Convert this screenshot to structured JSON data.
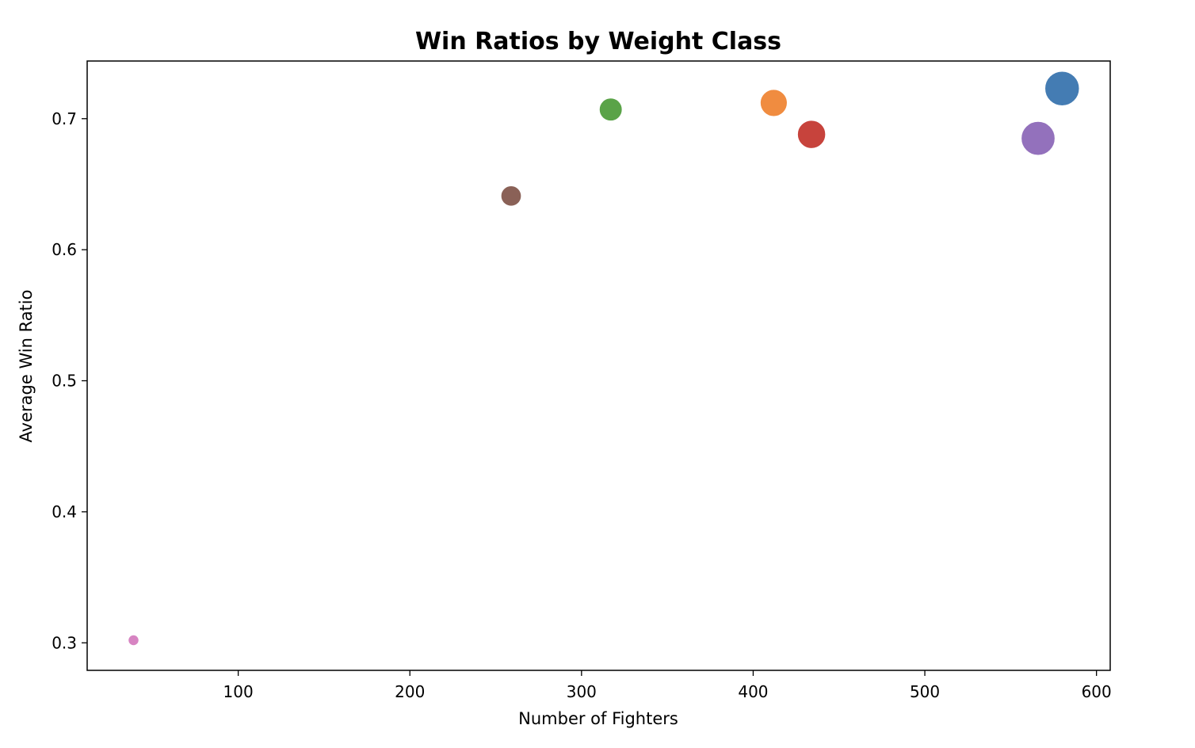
{
  "chart_data": {
    "type": "scatter",
    "title": "Win Ratios by Weight Class",
    "xlabel": "Number of Fighters",
    "ylabel": "Average Win Ratio",
    "xlim": [
      12,
      608
    ],
    "ylim": [
      0.279,
      0.744
    ],
    "x_ticks": [
      100,
      200,
      300,
      400,
      500,
      600
    ],
    "y_ticks": [
      0.3,
      0.4,
      0.5,
      0.6,
      0.7
    ],
    "grid": false,
    "legend": "none",
    "size_encoding": "number_of_fighters",
    "points": [
      {
        "x": 580,
        "y": 0.723,
        "color": "#3a75af"
      },
      {
        "x": 412,
        "y": 0.712,
        "color": "#ef8636"
      },
      {
        "x": 317,
        "y": 0.707,
        "color": "#519e3e"
      },
      {
        "x": 434,
        "y": 0.688,
        "color": "#c43932"
      },
      {
        "x": 566,
        "y": 0.685,
        "color": "#8d69b8"
      },
      {
        "x": 259,
        "y": 0.641,
        "color": "#84584e"
      },
      {
        "x": 39,
        "y": 0.302,
        "color": "#d57dbf"
      }
    ]
  }
}
